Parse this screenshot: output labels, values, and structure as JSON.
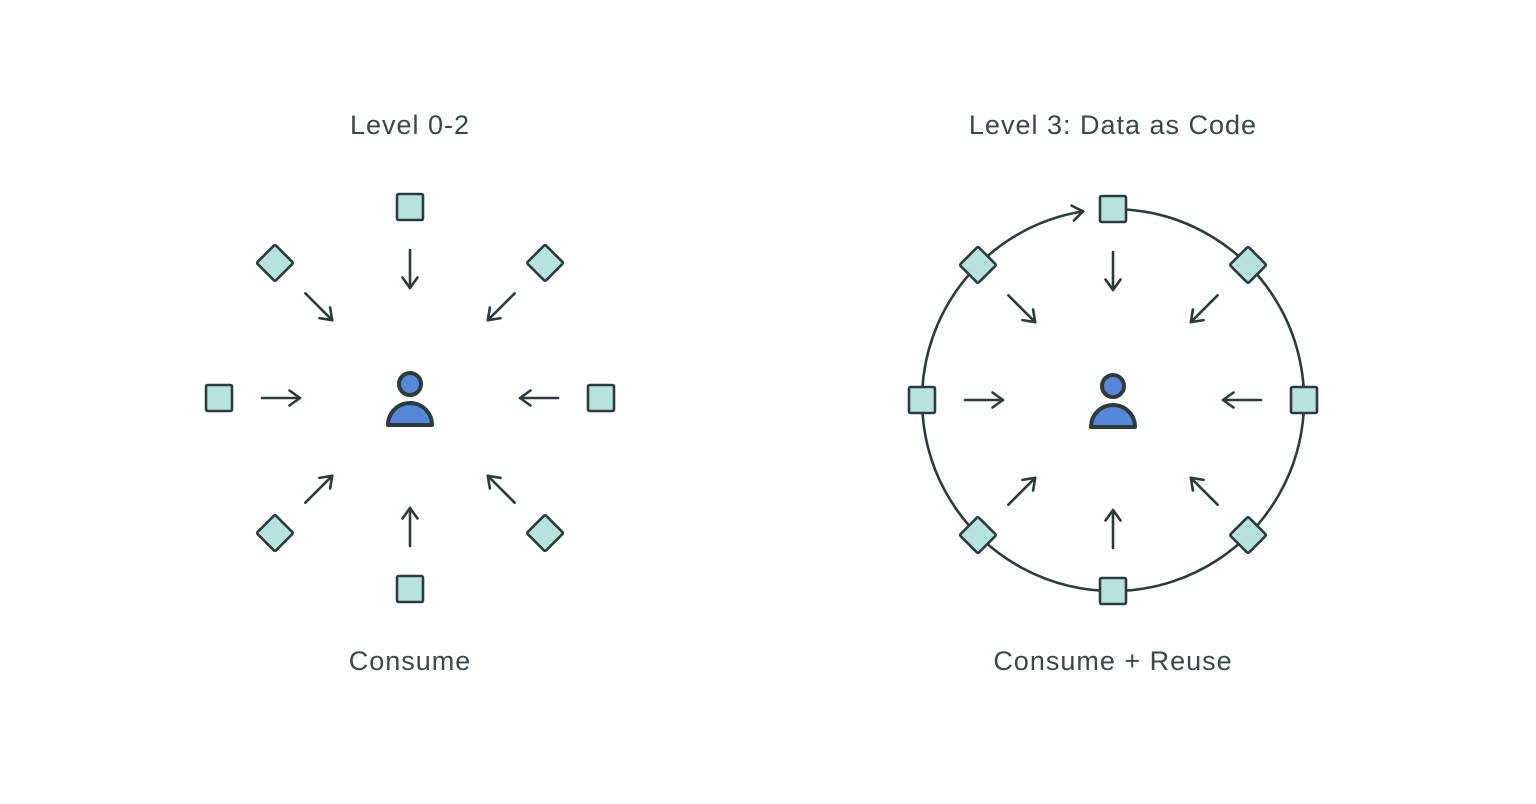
{
  "colors": {
    "background": "#ffffff",
    "ink": "#3a474b",
    "stroke": "#2e3b3d",
    "shape_fill": "#b7e3dd",
    "person_fill": "#5787d8"
  },
  "diagrams": [
    {
      "title": "Level 0-2",
      "caption": "Consume",
      "ring": false,
      "center_icon": "person-icon",
      "arrow_direction": "inward",
      "nodes": [
        {
          "shape": "square",
          "position": "top"
        },
        {
          "shape": "diamond",
          "position": "top-right"
        },
        {
          "shape": "square",
          "position": "right"
        },
        {
          "shape": "diamond",
          "position": "bottom-right"
        },
        {
          "shape": "square",
          "position": "bottom"
        },
        {
          "shape": "diamond",
          "position": "bottom-left"
        },
        {
          "shape": "square",
          "position": "left"
        },
        {
          "shape": "diamond",
          "position": "top-left"
        }
      ]
    },
    {
      "title": "Level 3: Data as Code",
      "caption": "Consume + Reuse",
      "ring": true,
      "ring_flow": "clockwise",
      "center_icon": "person-icon",
      "arrow_direction": "inward",
      "nodes": [
        {
          "shape": "square",
          "position": "top"
        },
        {
          "shape": "diamond",
          "position": "top-right"
        },
        {
          "shape": "square",
          "position": "right"
        },
        {
          "shape": "diamond",
          "position": "bottom-right"
        },
        {
          "shape": "square",
          "position": "bottom"
        },
        {
          "shape": "diamond",
          "position": "bottom-left"
        },
        {
          "shape": "square",
          "position": "left"
        },
        {
          "shape": "diamond",
          "position": "top-left"
        }
      ]
    }
  ]
}
